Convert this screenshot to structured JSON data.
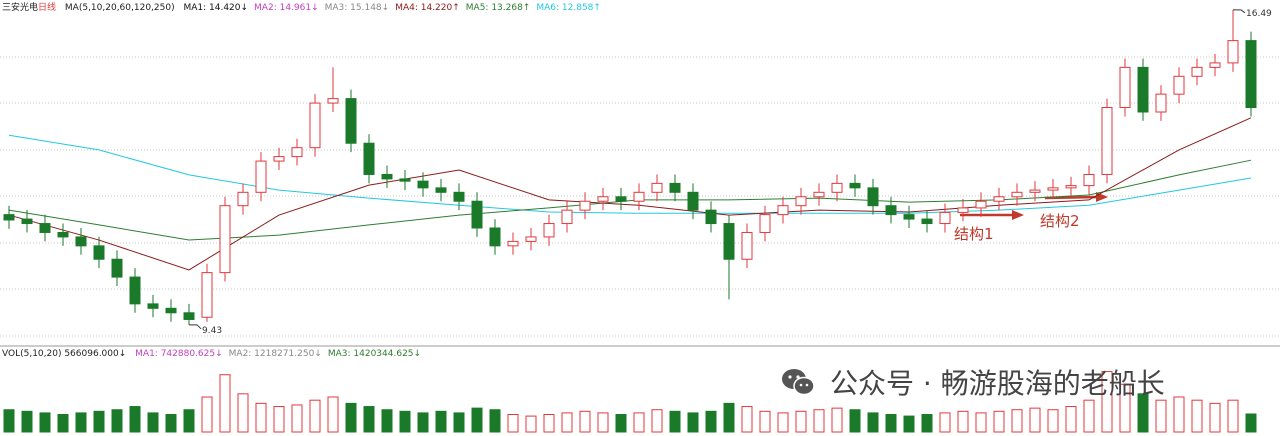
{
  "chart_data": {
    "type": "candlestick",
    "name": "三安光电",
    "period": "日线",
    "ma_params": "MA(5,10,20,60,120,250)",
    "ma_labels": [
      {
        "text": "MA1: 14.420↓",
        "color": "#111111"
      },
      {
        "text": "MA2: 14.961↓",
        "color": "#c040c0"
      },
      {
        "text": "MA3: 15.148↓",
        "color": "#888888"
      },
      {
        "text": "MA4: 14.220↑",
        "color": "#8b1a1a"
      },
      {
        "text": "MA5: 13.268↑",
        "color": "#2e7d32"
      },
      {
        "text": "MA6: 12.858↑",
        "color": "#22c8e0"
      }
    ],
    "ylim": [
      9.09,
      16.71
    ],
    "open": [
      11.9,
      11.8,
      11.7,
      11.5,
      11.4,
      11.2,
      10.9,
      10.5,
      9.9,
      9.8,
      9.7,
      9.6,
      10.6,
      12.1,
      12.4,
      13.1,
      13.2,
      13.4,
      14.4,
      14.5,
      13.5,
      12.8,
      12.7,
      12.65,
      12.5,
      12.4,
      12.2,
      11.6,
      11.2,
      11.3,
      11.4,
      11.7,
      12.0,
      12.2,
      12.3,
      12.2,
      12.4,
      12.6,
      12.4,
      12.0,
      11.7,
      10.9,
      11.5,
      11.9,
      12.1,
      12.3,
      12.4,
      12.6,
      12.5,
      12.1,
      11.9,
      11.8,
      11.7,
      11.95,
      12.05,
      12.2,
      12.3,
      12.4,
      12.45,
      12.5,
      12.55,
      12.8,
      14.3,
      15.2,
      14.2,
      14.6,
      15.0,
      15.2,
      15.3,
      15.8
    ],
    "high": [
      12.1,
      12.0,
      11.9,
      11.7,
      11.6,
      11.4,
      11.1,
      10.7,
      10.1,
      10.0,
      9.9,
      10.8,
      12.3,
      12.6,
      13.3,
      13.4,
      13.6,
      14.6,
      15.2,
      14.7,
      13.7,
      13.0,
      12.9,
      12.85,
      12.7,
      12.6,
      12.4,
      11.8,
      11.5,
      11.6,
      11.9,
      12.2,
      12.4,
      12.5,
      12.5,
      12.6,
      12.8,
      12.8,
      12.6,
      12.2,
      11.9,
      11.7,
      12.1,
      12.3,
      12.5,
      12.6,
      12.8,
      12.8,
      12.7,
      12.3,
      12.1,
      12.0,
      12.15,
      12.25,
      12.4,
      12.5,
      12.6,
      12.65,
      12.7,
      12.75,
      13.0,
      14.5,
      15.4,
      15.4,
      14.8,
      15.2,
      15.4,
      15.5,
      16.49,
      16.0
    ],
    "low": [
      11.58,
      11.5,
      11.3,
      11.2,
      11.0,
      10.7,
      10.3,
      9.7,
      9.6,
      9.5,
      9.43,
      9.5,
      10.4,
      11.9,
      12.2,
      12.9,
      13.0,
      13.2,
      14.2,
      13.3,
      12.6,
      12.5,
      12.45,
      12.3,
      12.2,
      12.0,
      11.4,
      11.0,
      11.0,
      11.1,
      11.2,
      11.5,
      11.8,
      12.0,
      12.0,
      12.0,
      12.2,
      12.2,
      11.8,
      11.5,
      10.0,
      10.7,
      11.3,
      11.7,
      11.9,
      12.1,
      12.2,
      12.3,
      11.9,
      11.7,
      11.6,
      11.5,
      11.5,
      11.75,
      11.85,
      12.0,
      12.1,
      12.2,
      12.25,
      12.3,
      12.35,
      12.6,
      14.1,
      14.0,
      14.0,
      14.4,
      14.8,
      15.0,
      15.1,
      14.1
    ],
    "close": [
      11.78,
      11.7,
      11.5,
      11.4,
      11.2,
      10.9,
      10.5,
      9.9,
      9.8,
      9.7,
      9.55,
      10.6,
      12.1,
      12.4,
      13.1,
      13.2,
      13.4,
      14.4,
      14.5,
      13.5,
      12.8,
      12.7,
      12.65,
      12.5,
      12.4,
      12.2,
      11.6,
      11.2,
      11.3,
      11.4,
      11.7,
      12.0,
      12.2,
      12.3,
      12.2,
      12.4,
      12.6,
      12.4,
      12.0,
      11.7,
      10.9,
      11.5,
      11.9,
      12.1,
      12.3,
      12.4,
      12.6,
      12.5,
      12.1,
      11.9,
      11.8,
      11.7,
      11.95,
      12.05,
      12.2,
      12.3,
      12.4,
      12.45,
      12.5,
      12.55,
      12.8,
      14.3,
      15.2,
      14.2,
      14.6,
      15.0,
      15.2,
      15.3,
      15.8,
      14.3
    ],
    "up_color": "#e0393e",
    "down_color": "#1a7a2a",
    "ma_lines": [
      {
        "color": "#22c8e0",
        "x": [
          0,
          5,
          10,
          15,
          20,
          25,
          30,
          35,
          40,
          45,
          50,
          55,
          60,
          65,
          69
        ],
        "values": [
          13.68,
          13.35,
          12.79,
          12.45,
          12.27,
          12.11,
          11.96,
          11.93,
          11.93,
          11.93,
          11.93,
          12.0,
          12.11,
          12.45,
          12.72
        ]
      },
      {
        "color": "#2e7d32",
        "x": [
          0,
          5,
          10,
          15,
          20,
          25,
          30,
          35,
          40,
          45,
          50,
          55,
          60,
          65,
          69
        ],
        "values": [
          12.0,
          11.67,
          11.33,
          11.44,
          11.67,
          11.89,
          12.05,
          12.23,
          12.23,
          12.27,
          12.18,
          12.23,
          12.34,
          12.79,
          13.12
        ]
      },
      {
        "color": "#8b1a1a",
        "x": [
          0,
          5,
          10,
          15,
          20,
          25,
          30,
          35,
          40,
          45,
          50,
          55,
          60,
          65,
          69
        ],
        "values": [
          11.89,
          11.33,
          10.66,
          11.89,
          12.56,
          12.9,
          12.23,
          12.11,
          11.89,
          12.0,
          11.96,
          12.11,
          12.23,
          13.35,
          14.07
        ]
      }
    ],
    "high_label": "16.49",
    "low_label": "9.43",
    "annotations": [
      "结构1",
      "结构2"
    ],
    "volume": {
      "title": "VOL(5,10,20) 566096.000↓",
      "ma_labels": [
        {
          "text": "MA1: 742880.625↓",
          "color": "#c040c0"
        },
        {
          "text": "MA2: 1218271.250↓",
          "color": "#888888"
        },
        {
          "text": "MA3: 1420344.625↓",
          "color": "#2e7d32"
        }
      ],
      "ylim": [
        0,
        2200000
      ],
      "values": [
        700000,
        650000,
        600000,
        550000,
        600000,
        650000,
        700000,
        800000,
        600000,
        550000,
        700000,
        1100000,
        1800000,
        1200000,
        900000,
        800000,
        850000,
        1000000,
        1100000,
        900000,
        800000,
        700000,
        650000,
        600000,
        650000,
        600000,
        750000,
        700000,
        550000,
        500000,
        550000,
        600000,
        650000,
        600000,
        550000,
        600000,
        700000,
        650000,
        600000,
        650000,
        900000,
        800000,
        650000,
        600000,
        650000,
        700000,
        750000,
        700000,
        600000,
        550000,
        500000,
        550000,
        600000,
        650000,
        600000,
        650000,
        700000,
        750000,
        700000,
        800000,
        1000000,
        1900000,
        1500000,
        1200000,
        1000000,
        1100000,
        1000000,
        900000,
        1000000,
        566096
      ]
    }
  },
  "watermark": "公众号 · 畅游股海的老船长"
}
